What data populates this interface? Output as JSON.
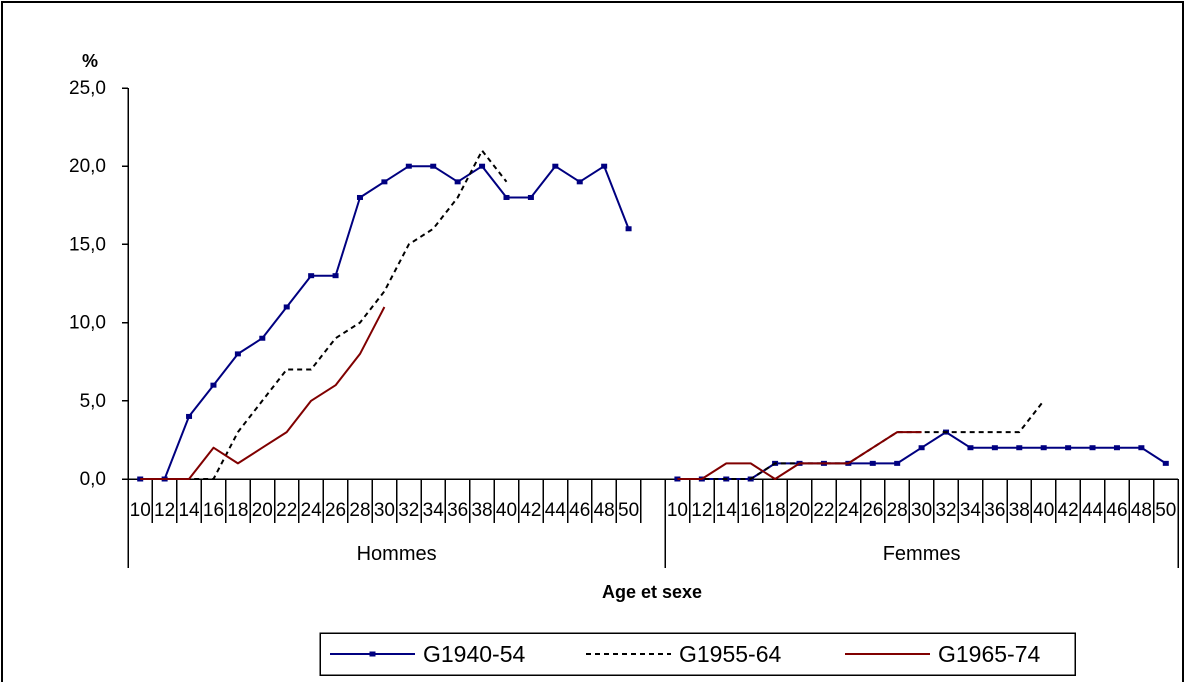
{
  "chart_data": {
    "type": "line",
    "ylabel": "%",
    "xlabel": "Age et sexe",
    "ylim": [
      0,
      25
    ],
    "yticks": [
      {
        "value": 0,
        "label": "0,0"
      },
      {
        "value": 5,
        "label": "5,0"
      },
      {
        "value": 10,
        "label": "10,0"
      },
      {
        "value": 15,
        "label": "15,0"
      },
      {
        "value": 20,
        "label": "20,0"
      },
      {
        "value": 25,
        "label": "25,0"
      }
    ],
    "grid": false,
    "legend_position": "bottom",
    "groups": [
      "Hommes",
      "Femmes"
    ],
    "categories": [
      "10",
      "12",
      "14",
      "16",
      "18",
      "20",
      "22",
      "24",
      "26",
      "28",
      "30",
      "32",
      "34",
      "36",
      "38",
      "40",
      "42",
      "44",
      "46",
      "48",
      "50"
    ],
    "series": [
      {
        "name": "G1940-54",
        "color": "#000080",
        "line_style": "solid",
        "marker": "square",
        "values": {
          "Hommes": [
            0,
            0,
            4,
            6,
            8,
            9,
            11,
            13,
            13,
            18,
            19,
            20,
            20,
            19,
            20,
            18,
            18,
            20,
            19,
            20,
            16
          ],
          "Femmes": [
            0,
            0,
            0,
            0,
            1,
            1,
            1,
            1,
            1,
            1,
            2,
            3,
            2,
            2,
            2,
            2,
            2,
            2,
            2,
            2,
            1
          ]
        }
      },
      {
        "name": "G1955-64",
        "color": "#000000",
        "line_style": "dashed",
        "marker": "none",
        "values": {
          "Hommes": [
            0,
            0,
            0,
            0,
            3,
            5,
            7,
            7,
            9,
            10,
            12,
            15,
            16,
            18,
            21,
            19,
            null,
            null,
            null,
            null,
            null
          ],
          "Femmes": [
            0,
            0,
            0,
            0,
            1,
            1,
            1,
            1,
            2,
            3,
            3,
            3,
            3,
            3,
            3,
            5,
            null,
            null,
            null,
            null,
            null
          ]
        }
      },
      {
        "name": "G1965-74",
        "color": "#800000",
        "line_style": "solid",
        "marker": "none",
        "values": {
          "Hommes": [
            0,
            0,
            0,
            2,
            1,
            2,
            3,
            5,
            6,
            8,
            11,
            null,
            null,
            null,
            null,
            null,
            null,
            null,
            null,
            null,
            null
          ],
          "Femmes": [
            0,
            0,
            1,
            1,
            0,
            1,
            1,
            1,
            2,
            3,
            3,
            null,
            null,
            null,
            null,
            null,
            null,
            null,
            null,
            null,
            null
          ]
        }
      }
    ]
  }
}
